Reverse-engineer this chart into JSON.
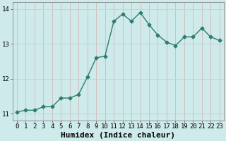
{
  "x": [
    0,
    1,
    2,
    3,
    4,
    5,
    6,
    7,
    8,
    9,
    10,
    11,
    12,
    13,
    14,
    15,
    16,
    17,
    18,
    19,
    20,
    21,
    22,
    23
  ],
  "y": [
    11.05,
    11.1,
    11.1,
    11.2,
    11.2,
    11.45,
    11.45,
    11.55,
    12.05,
    12.6,
    12.65,
    13.65,
    13.85,
    13.65,
    13.9,
    13.55,
    13.25,
    13.05,
    12.95,
    13.2,
    13.2,
    13.45,
    13.2,
    13.1
  ],
  "line_color": "#2e7d6e",
  "marker": "D",
  "marker_size": 2.5,
  "bg_color": "#ceeaea",
  "grid_color_h": "#b8d8d8",
  "grid_color_v": "#d4b8b8",
  "xlabel": "Humidex (Indice chaleur)",
  "xlabel_fontsize": 8,
  "ylim": [
    10.8,
    14.2
  ],
  "xlim": [
    -0.5,
    23.5
  ],
  "yticks": [
    11,
    12,
    13,
    14
  ],
  "xtick_labels": [
    "0",
    "1",
    "2",
    "3",
    "4",
    "5",
    "6",
    "7",
    "8",
    "9",
    "10",
    "11",
    "12",
    "13",
    "14",
    "15",
    "16",
    "17",
    "18",
    "19",
    "20",
    "21",
    "22",
    "23"
  ],
  "tick_fontsize": 6.5,
  "linewidth": 1.0
}
